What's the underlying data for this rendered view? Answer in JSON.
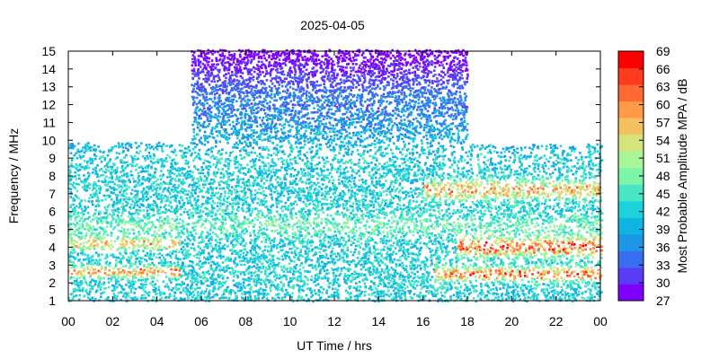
{
  "chart_data": {
    "type": "heatmap",
    "title": "2025-04-05",
    "xlabel": "UT Time / hrs",
    "ylabel": "Frequency / MHz",
    "xlim": [
      0,
      24
    ],
    "ylim": [
      1,
      15
    ],
    "x_ticks": [
      "00",
      "02",
      "04",
      "06",
      "08",
      "10",
      "12",
      "14",
      "16",
      "18",
      "20",
      "22",
      "00"
    ],
    "y_ticks": [
      "1",
      "2",
      "3",
      "4",
      "5",
      "6",
      "7",
      "8",
      "9",
      "10",
      "11",
      "12",
      "13",
      "14",
      "15"
    ],
    "grid": false,
    "colorbar": {
      "label": "Most Probable Amplitude MPA / dB",
      "range": [
        27,
        69
      ],
      "ticks": [
        "69",
        "66",
        "63",
        "60",
        "57",
        "54",
        "51",
        "48",
        "45",
        "42",
        "39",
        "36",
        "33",
        "30",
        "27"
      ],
      "colors": [
        "#7f00ff",
        "#5a3cf5",
        "#3a6ef0",
        "#1e96e6",
        "#10b4e2",
        "#1ed2dc",
        "#4ae6c4",
        "#7cf5aa",
        "#a8f59a",
        "#d6e47e",
        "#f5c060",
        "#ff9a46",
        "#ff6a32",
        "#ff3a1e",
        "#ff0000"
      ]
    },
    "coverage": [
      {
        "x_range": [
          0,
          5.5
        ],
        "max_freq_mhz": 9.8
      },
      {
        "x_range": [
          5.5,
          18
        ],
        "max_freq_mhz": 15
      },
      {
        "x_range": [
          18,
          24
        ],
        "max_freq_mhz": 9.7
      }
    ],
    "amplitude_model": {
      "background_db": 42,
      "bands": [
        {
          "x_range": [
            0,
            5
          ],
          "freq_mhz": 2.6,
          "width_mhz": 0.3,
          "peak_db": 62
        },
        {
          "x_range": [
            0,
            5
          ],
          "freq_mhz": 4.2,
          "width_mhz": 0.35,
          "peak_db": 58
        },
        {
          "x_range": [
            16.5,
            24
          ],
          "freq_mhz": 2.5,
          "width_mhz": 0.35,
          "peak_db": 64
        },
        {
          "x_range": [
            17.5,
            24
          ],
          "freq_mhz": 4.0,
          "width_mhz": 0.5,
          "peak_db": 66
        },
        {
          "x_range": [
            16,
            24
          ],
          "freq_mhz": 7.2,
          "width_mhz": 0.5,
          "peak_db": 60
        },
        {
          "x_range": [
            0,
            24
          ],
          "freq_mhz": 5.2,
          "width_mhz": 0.6,
          "peak_db": 48
        }
      ],
      "high_freq_region": {
        "x_range": [
          5.5,
          18
        ],
        "freq_range_mhz": [
          12,
          15
        ],
        "db_range": [
          27,
          36
        ]
      }
    }
  }
}
